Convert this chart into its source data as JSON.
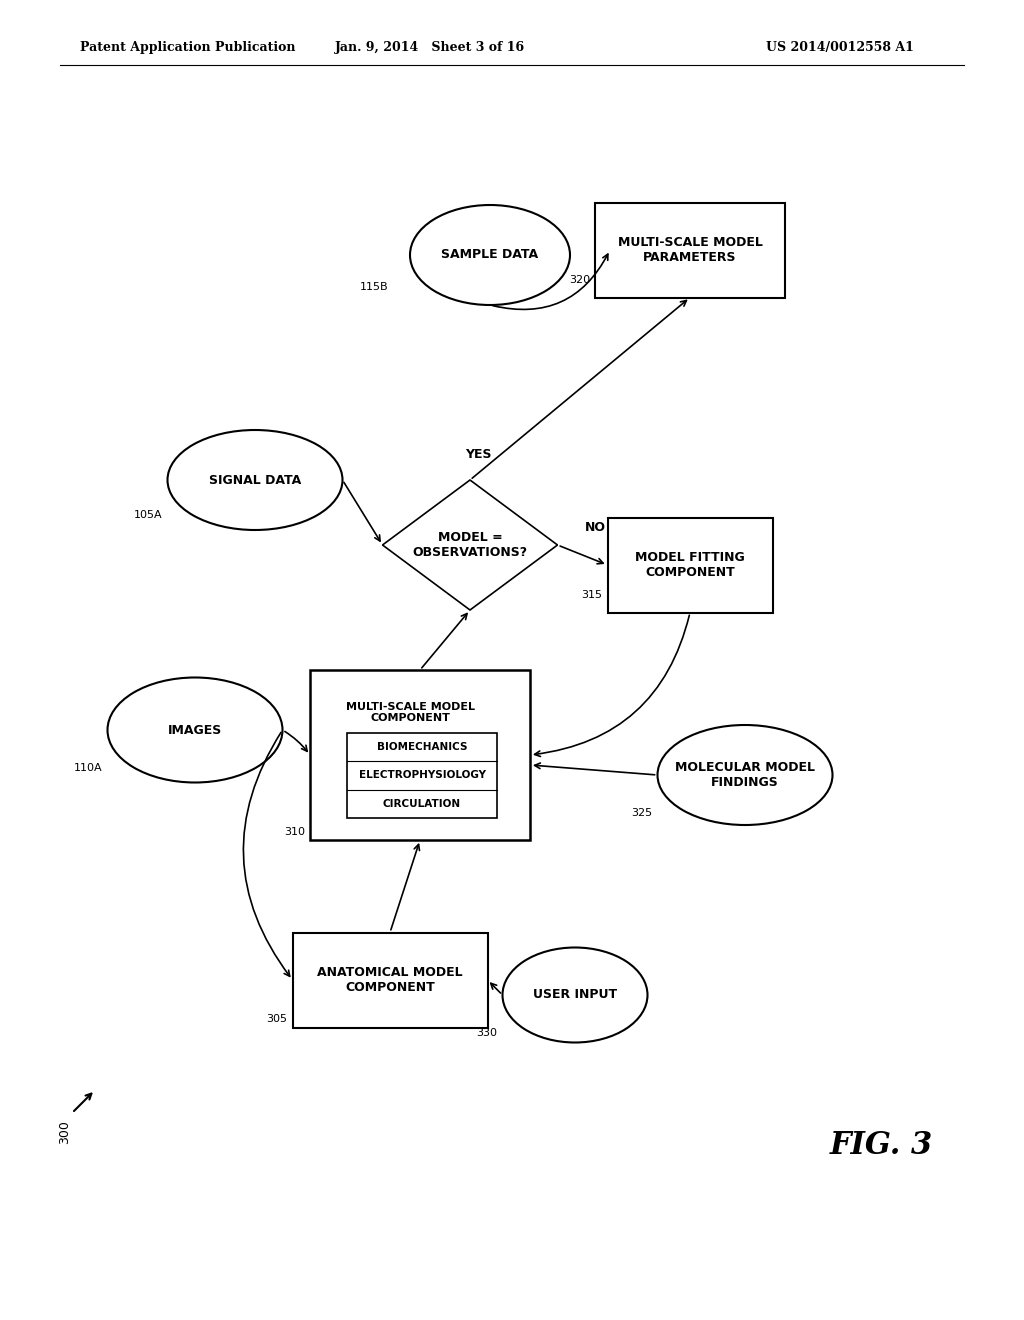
{
  "header_left": "Patent Application Publication",
  "header_mid": "Jan. 9, 2014   Sheet 3 of 16",
  "header_right": "US 2014/0012558 A1",
  "fig_label": "FIG. 3",
  "background": "#ffffff"
}
